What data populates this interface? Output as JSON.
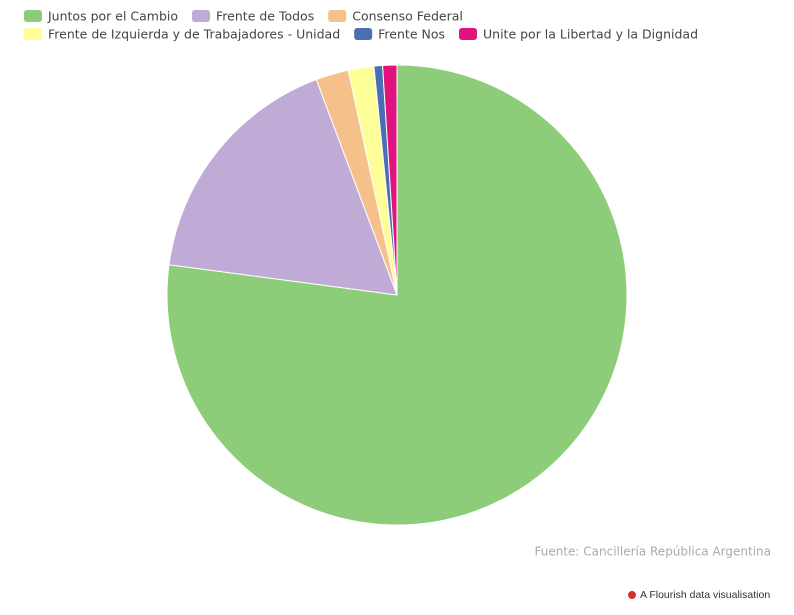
{
  "chart_data": {
    "type": "pie",
    "categories": [
      "Juntos por el Cambio",
      "Frente de Todos",
      "Consenso Federal",
      "Frente de Izquierda y de Trabajadores - Unidad",
      "Frente Nos",
      "Unite por la Libertad y la Dignidad"
    ],
    "values": [
      77.1,
      17.2,
      2.3,
      1.8,
      0.6,
      1.0
    ],
    "colors": [
      "#8dcc78",
      "#bfabd6",
      "#f5c08a",
      "#fefe99",
      "#4a6db4",
      "#e0147e"
    ]
  },
  "source": "Fuente: Cancillería República Argentina",
  "credit": "A Flourish data visualisation"
}
